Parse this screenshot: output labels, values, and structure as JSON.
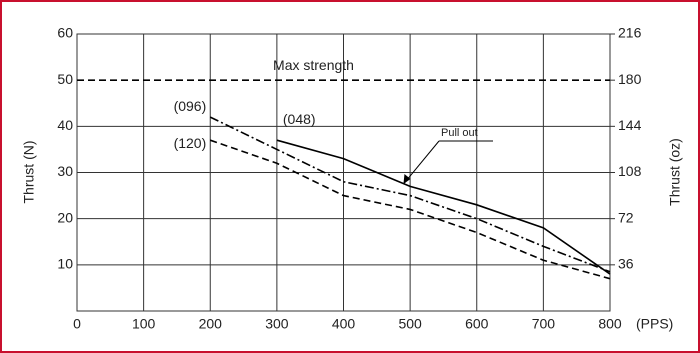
{
  "chart_data": {
    "type": "line",
    "x_label": "(PPS)",
    "y_label": "Thrust (N)",
    "y2_label": "Thrust (oz)",
    "xlim": [
      0,
      800
    ],
    "xticks": [
      0,
      100,
      200,
      300,
      400,
      500,
      600,
      700,
      800
    ],
    "ylim": [
      0,
      60
    ],
    "yticks": [
      10,
      20,
      30,
      40,
      50,
      60
    ],
    "y2lim": [
      0,
      216
    ],
    "y2ticks": [
      36,
      72,
      108,
      144,
      180,
      216
    ],
    "grid": true,
    "series": [
      {
        "name": "Max strength",
        "color": "#000000",
        "dash": "dashed",
        "x": [
          0,
          800
        ],
        "values": [
          50,
          50
        ]
      },
      {
        "name": "(048)",
        "color": "#000000",
        "dash": "solid",
        "x": [
          300,
          400,
          500,
          600,
          700,
          800
        ],
        "values": [
          37,
          33,
          27,
          23,
          18,
          8
        ]
      },
      {
        "name": "(096)",
        "color": "#000000",
        "dash": "dashdot",
        "x": [
          200,
          300,
          400,
          500,
          600,
          700,
          800
        ],
        "values": [
          42,
          35,
          28,
          25,
          20,
          14,
          8.5
        ]
      },
      {
        "name": "(120)",
        "color": "#000000",
        "dash": "dashed",
        "x": [
          200,
          300,
          400,
          500,
          600,
          700,
          800
        ],
        "values": [
          37,
          32,
          25,
          22,
          17,
          11,
          7
        ]
      }
    ],
    "annotation": "Pull out"
  }
}
